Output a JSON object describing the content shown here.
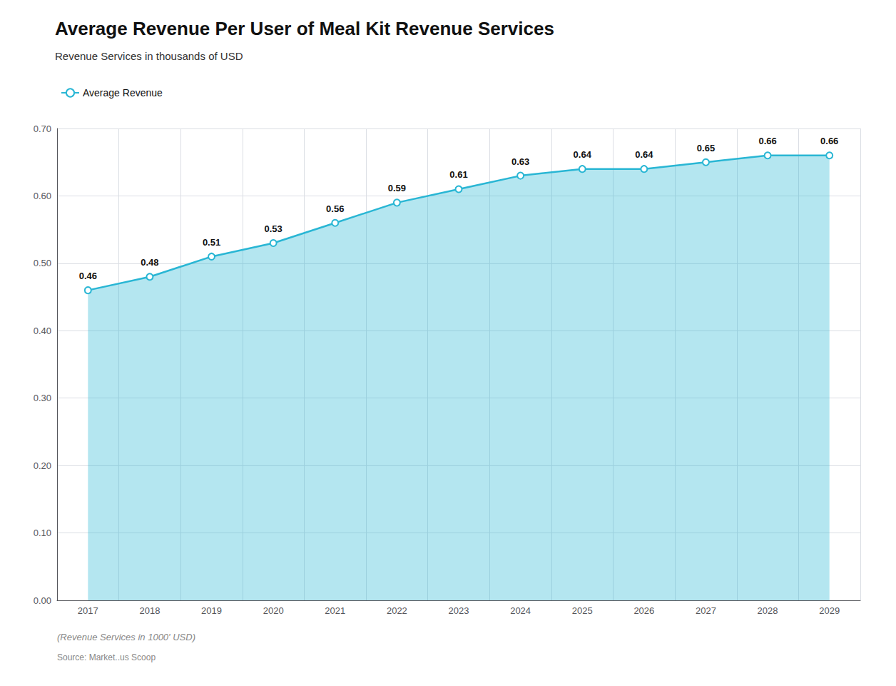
{
  "chart_data": {
    "type": "line",
    "title": "Average Revenue Per User of Meal Kit Revenue Services",
    "subtitle": "Revenue Services in thousands of USD",
    "footer": "(Revenue Services in 1000' USD)",
    "source": "Source: Market..us Scoop",
    "categories": [
      "2017",
      "2018",
      "2019",
      "2020",
      "2021",
      "2022",
      "2023",
      "2024",
      "2025",
      "2026",
      "2027",
      "2028",
      "2029"
    ],
    "series": [
      {
        "name": "Average Revenue",
        "color": "#29b6d4",
        "marker": "open_circle",
        "values": [
          0.46,
          0.48,
          0.51,
          0.53,
          0.56,
          0.59,
          0.61,
          0.63,
          0.64,
          0.64,
          0.65,
          0.66,
          0.66
        ]
      }
    ],
    "ylim": [
      0.0,
      0.7
    ],
    "yticks": [
      {
        "value": 0.0,
        "label": "0.00"
      },
      {
        "value": 0.1,
        "label": "0.10"
      },
      {
        "value": 0.2,
        "label": "0.20"
      },
      {
        "value": 0.3,
        "label": "0.30"
      },
      {
        "value": 0.4,
        "label": "0.40"
      },
      {
        "value": 0.5,
        "label": "0.50"
      },
      {
        "value": 0.6,
        "label": "0.60"
      },
      {
        "value": 0.7,
        "label": "0.70"
      }
    ],
    "grid": true,
    "legend": "top left",
    "data_labels": true
  }
}
